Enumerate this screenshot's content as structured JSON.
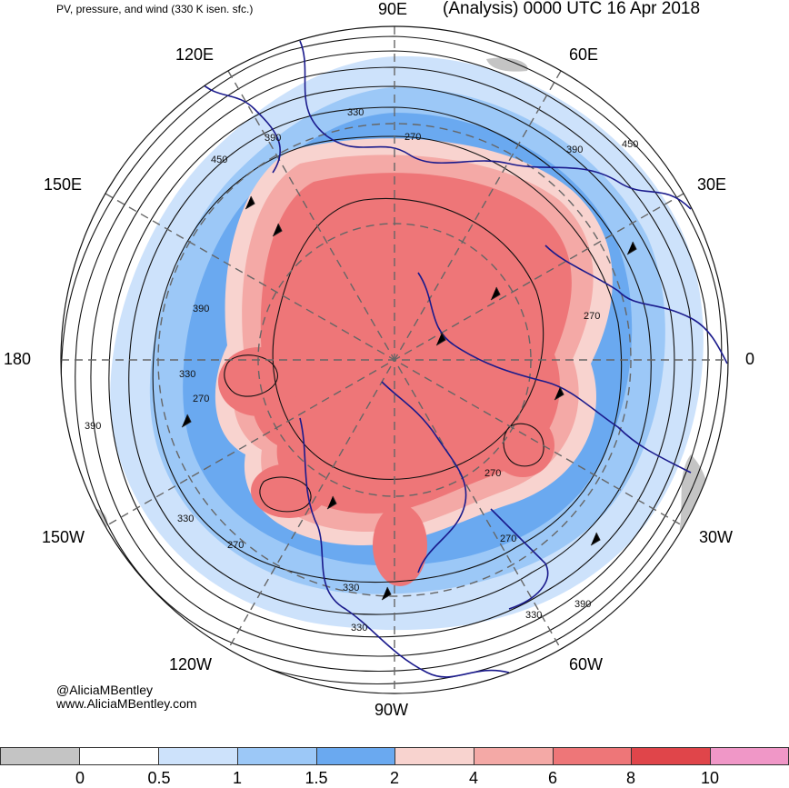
{
  "header": {
    "product": "PV, pressure, and wind (330 K isen. sfc.)",
    "valid": "(Analysis) 0000 UTC 16 Apr 2018"
  },
  "longitude_labels": {
    "lon_90e": "90E",
    "lon_60e": "60E",
    "lon_30e": "30E",
    "lon_0": "0",
    "lon_30w": "30W",
    "lon_60w": "60W",
    "lon_90w": "90W",
    "lon_120w": "120W",
    "lon_150w": "150W",
    "lon_180": "180",
    "lon_150e": "150E",
    "lon_120e": "120E"
  },
  "contour_labels": [
    "330",
    "270",
    "390",
    "450",
    "390",
    "450",
    "390",
    "270",
    "330",
    "270",
    "390",
    "330",
    "270",
    "330",
    "270",
    "390",
    "330",
    "270",
    "330",
    "390"
  ],
  "credits": {
    "handle": "@AliciaMBentley",
    "website": "www.AliciaMBentley.com"
  },
  "colorbar": {
    "ticks": [
      "0",
      "0.5",
      "1",
      "1.5",
      "2",
      "4",
      "6",
      "8",
      "10"
    ],
    "colors": [
      "#c4c4c4",
      "#ffffff",
      "#cde2fb",
      "#9cc8f7",
      "#6aa9f0",
      "#f8d3cf",
      "#f4a9a6",
      "#ee7678",
      "#e0454a",
      "#f097c7"
    ]
  },
  "palette": {
    "blue_light": "#cde2fb",
    "blue_mid": "#9cc8f7",
    "blue_dark": "#6aa9f0",
    "red_light": "#f8d3cf",
    "red_mid": "#f4a9a6",
    "red_strong": "#ee7678",
    "coast": "#1a1a8c",
    "contour": "#111111",
    "grid": "#666666"
  }
}
